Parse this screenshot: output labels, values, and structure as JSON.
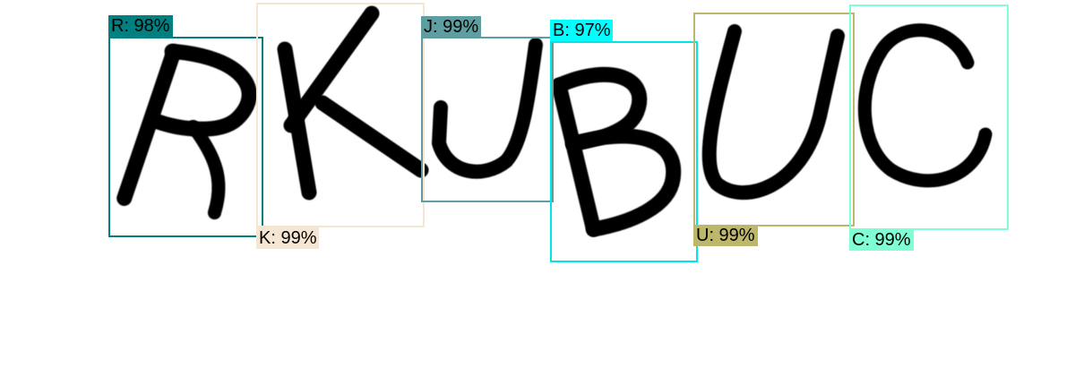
{
  "image": {
    "content": "handwritten captcha characters",
    "characters": [
      "R",
      "K",
      "J",
      "B",
      "U",
      "C"
    ]
  },
  "detections": [
    {
      "label": "R: 98%",
      "color": "#008080"
    },
    {
      "label": "K: 99%",
      "color": "#f5e6d3"
    },
    {
      "label": "J: 99%",
      "color": "#5f9ea0"
    },
    {
      "label": "B: 97%",
      "color": "#00ffff"
    },
    {
      "label": "U: 99%",
      "color": "#bdb76b"
    },
    {
      "label": "C: 99%",
      "color": "#7fffd4"
    }
  ]
}
